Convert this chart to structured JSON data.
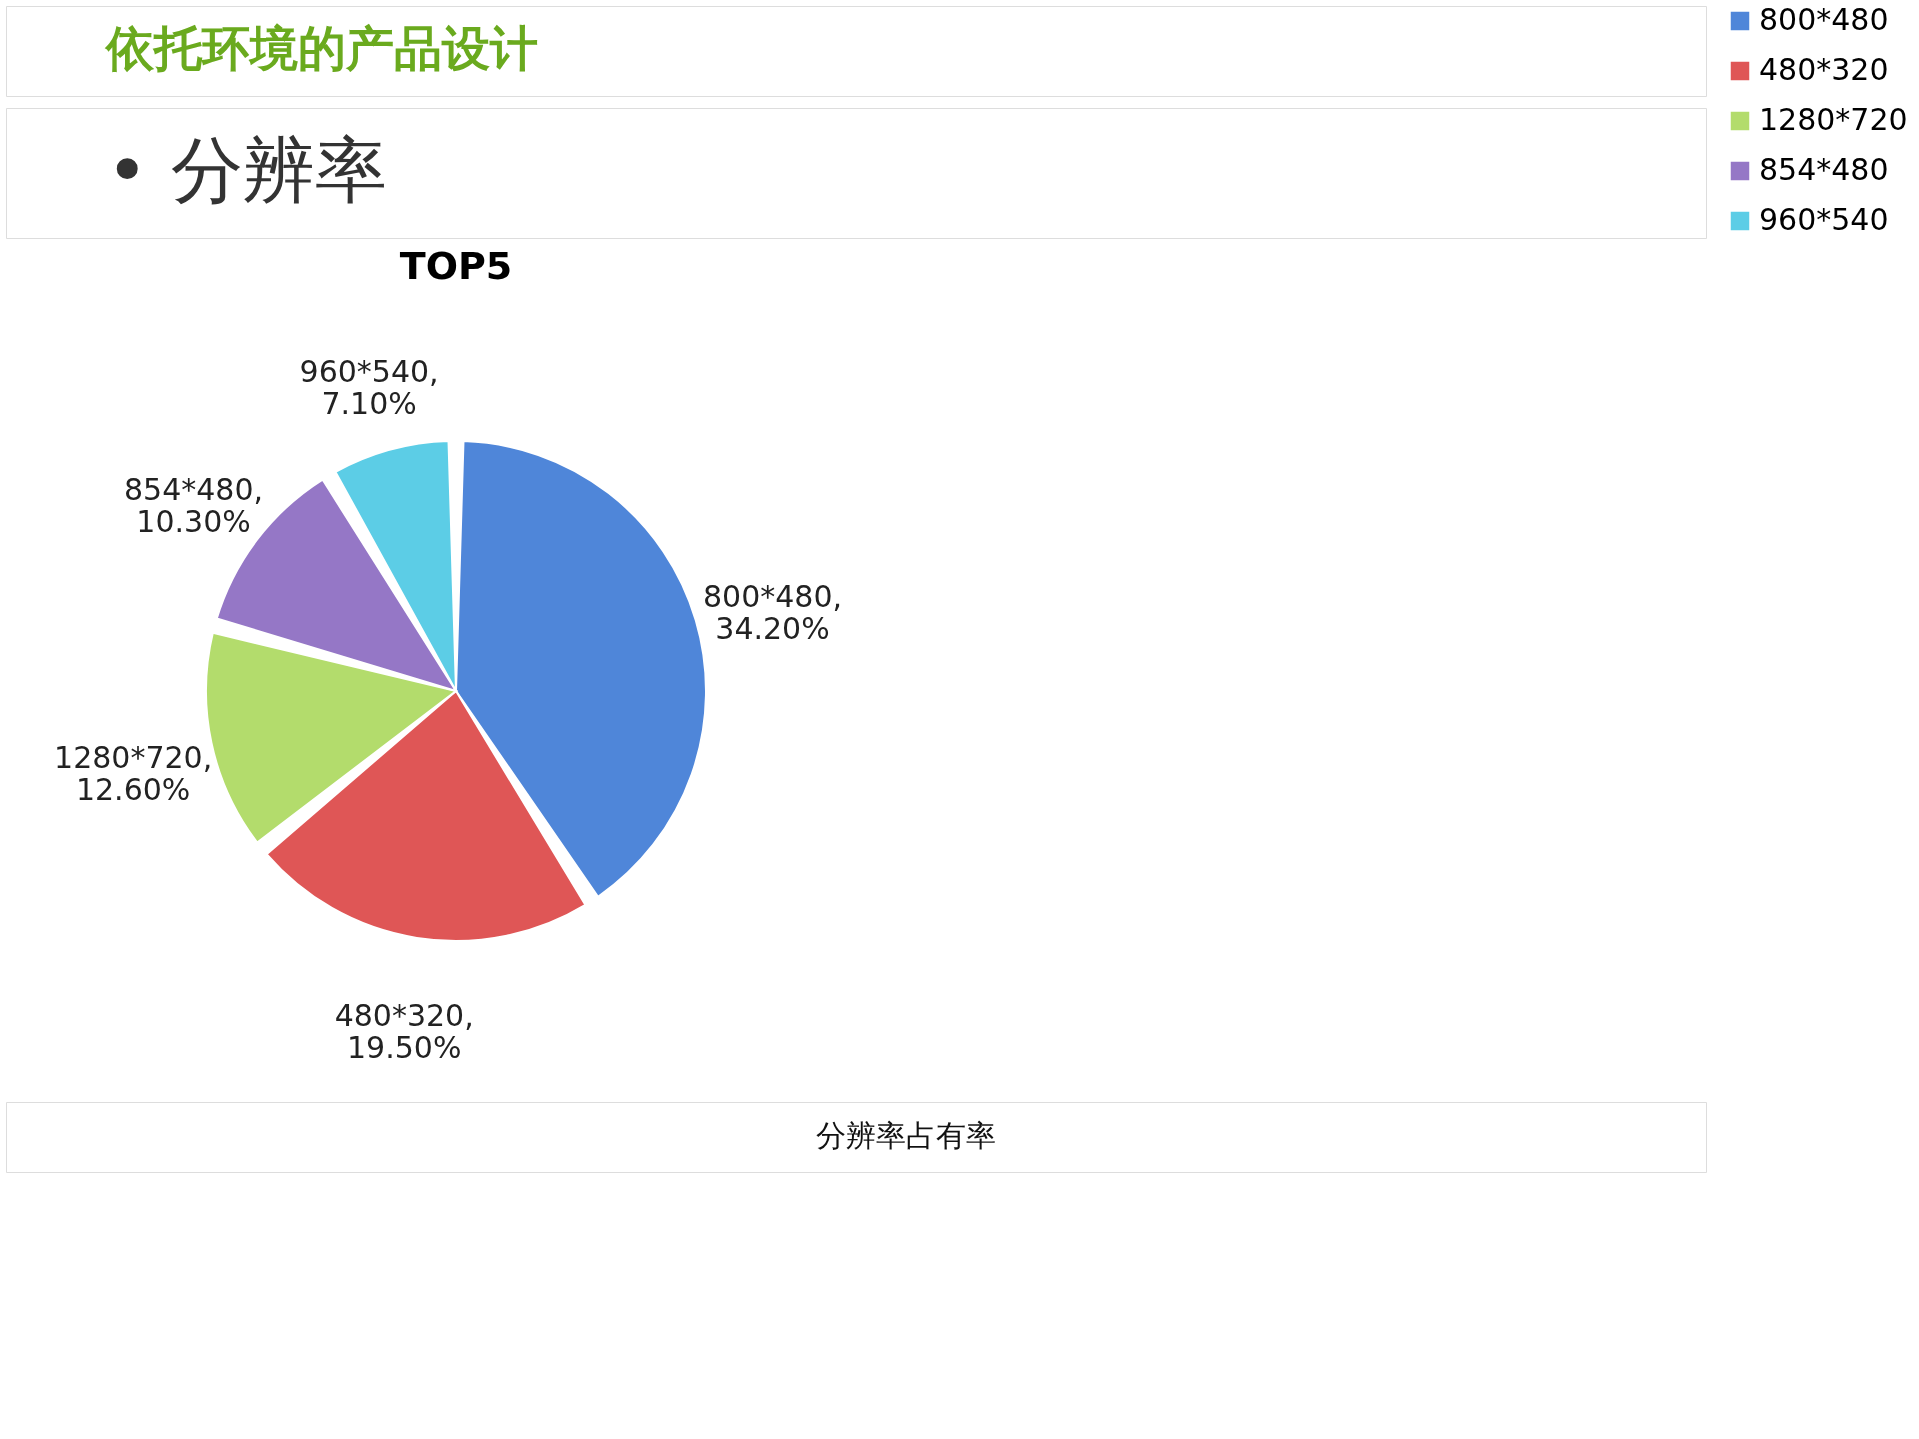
{
  "chart_data": {
    "type": "pie",
    "title": "TOP5",
    "categories": [
      "800*480",
      "480*320",
      "1280*720",
      "854*480",
      "960*540"
    ],
    "values": [
      34.2,
      19.5,
      12.6,
      10.3,
      7.1
    ],
    "colors": [
      "#4f86d9",
      "#df5656",
      "#b3dc6c",
      "#9577c6",
      "#5ccde6"
    ],
    "value_labels": [
      "800*480,\n34.20%",
      "480*320,\n19.50%",
      "1280*720,\n12.60%",
      "854*480,\n10.30%",
      "960*540,\n7.10%"
    ],
    "legend": "right",
    "annotations": [
      "依托环境的产品设计",
      "• 分辨率",
      "分辨率占有率"
    ]
  }
}
